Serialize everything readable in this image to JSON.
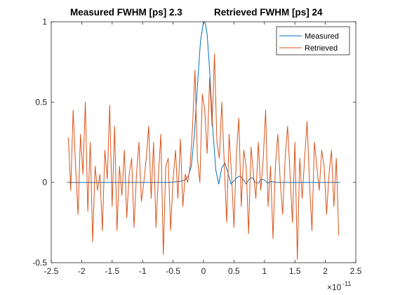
{
  "chart_data": {
    "type": "line",
    "title": "Measured FWHM [ps]  2.3      Retrieved FWHM [ps]  24",
    "title_left": "Measured FWHM [ps]  2.3",
    "title_right": "Retrieved FWHM [ps]  24",
    "xlabel": "",
    "ylabel": "",
    "x_exponent_label": "×10",
    "x_exponent_power": "-11",
    "xlim": [
      -2.5,
      2.5
    ],
    "ylim": [
      -0.5,
      1
    ],
    "xticks": [
      -2.5,
      -2,
      -1.5,
      -1,
      -0.5,
      0,
      0.5,
      1,
      1.5,
      2,
      2.5
    ],
    "xtick_labels": [
      "-2.5",
      "-2",
      "-1.5",
      "-1",
      "-0.5",
      "0",
      "0.5",
      "1",
      "1.5",
      "2",
      "2.5"
    ],
    "yticks": [
      -0.5,
      0,
      0.5,
      1
    ],
    "ytick_labels": [
      "-0.5",
      "0",
      "0.5",
      "1"
    ],
    "grid": false,
    "legend_position": "top-right",
    "series": [
      {
        "name": "Measured",
        "color": "#0072bd",
        "x": [
          -2.24,
          -1.5,
          -1.0,
          -0.6,
          -0.5,
          -0.4,
          -0.3,
          -0.25,
          -0.2,
          -0.15,
          -0.1,
          -0.05,
          0.0,
          0.03,
          0.06,
          0.1,
          0.15,
          0.2,
          0.25,
          0.3,
          0.35,
          0.4,
          0.45,
          0.5,
          0.55,
          0.6,
          0.65,
          0.7,
          0.75,
          0.8,
          0.85,
          0.9,
          0.95,
          1.0,
          1.05,
          1.1,
          1.2,
          1.5,
          2.0,
          2.24
        ],
        "y": [
          0,
          0,
          0,
          0,
          0.002,
          0.005,
          0.015,
          0.04,
          0.1,
          0.3,
          0.6,
          0.88,
          1.0,
          0.99,
          0.92,
          0.7,
          0.35,
          0.08,
          -0.01,
          0.09,
          0.12,
          0.06,
          -0.01,
          0.01,
          0.03,
          0.04,
          0.02,
          -0.01,
          0.02,
          0.03,
          0.0,
          -0.005,
          0.02,
          0.015,
          -0.005,
          0.005,
          0.0,
          0.0,
          0.0,
          0.0
        ]
      },
      {
        "name": "Retrieved",
        "color": "#d95319",
        "x": [
          -2.22,
          -2.18,
          -2.14,
          -2.1,
          -2.06,
          -2.02,
          -1.98,
          -1.94,
          -1.9,
          -1.86,
          -1.82,
          -1.78,
          -1.74,
          -1.7,
          -1.66,
          -1.62,
          -1.58,
          -1.54,
          -1.5,
          -1.46,
          -1.42,
          -1.38,
          -1.34,
          -1.3,
          -1.26,
          -1.22,
          -1.18,
          -1.14,
          -1.1,
          -1.06,
          -1.02,
          -0.98,
          -0.94,
          -0.9,
          -0.86,
          -0.82,
          -0.78,
          -0.74,
          -0.7,
          -0.66,
          -0.62,
          -0.58,
          -0.54,
          -0.5,
          -0.46,
          -0.42,
          -0.38,
          -0.34,
          -0.3,
          -0.26,
          -0.22,
          -0.18,
          -0.14,
          -0.1,
          -0.06,
          -0.02,
          0.02,
          0.06,
          0.1,
          0.14,
          0.18,
          0.22,
          0.26,
          0.3,
          0.34,
          0.38,
          0.42,
          0.46,
          0.5,
          0.54,
          0.58,
          0.62,
          0.66,
          0.7,
          0.74,
          0.78,
          0.82,
          0.86,
          0.9,
          0.94,
          0.98,
          1.02,
          1.06,
          1.1,
          1.14,
          1.18,
          1.22,
          1.26,
          1.3,
          1.34,
          1.38,
          1.42,
          1.46,
          1.5,
          1.54,
          1.58,
          1.62,
          1.66,
          1.7,
          1.74,
          1.78,
          1.82,
          1.86,
          1.9,
          1.94,
          1.98,
          2.02,
          2.06,
          2.1,
          2.14,
          2.18,
          2.22
        ],
        "y": [
          0.28,
          -0.05,
          0.45,
          0.1,
          -0.2,
          0.3,
          0.05,
          0.5,
          -0.18,
          0.25,
          -0.37,
          0.1,
          -0.05,
          0.05,
          -0.3,
          0.2,
          0.02,
          0.48,
          -0.15,
          0.35,
          -0.3,
          0.1,
          -0.08,
          0.2,
          -0.22,
          0.05,
          0.15,
          -0.28,
          0.05,
          0.25,
          -0.12,
          0.0,
          0.15,
          0.35,
          -0.1,
          0.25,
          -0.28,
          0.05,
          0.3,
          -0.45,
          0.1,
          0.15,
          -0.3,
          0.02,
          0.2,
          -0.1,
          0.27,
          -0.15,
          0.05,
          0.0,
          0.1,
          0.35,
          0.7,
          0.15,
          0.0,
          0.55,
          0.45,
          0.18,
          0.65,
          0.35,
          0.8,
          0.25,
          0.15,
          0.5,
          0.12,
          -0.25,
          0.3,
          0.05,
          -0.28,
          0.18,
          0.4,
          -0.15,
          0.2,
          0.1,
          -0.32,
          0.22,
          0.05,
          -0.1,
          0.25,
          -0.05,
          0.15,
          0.45,
          -0.15,
          0.1,
          -0.35,
          0.1,
          0.3,
          0.0,
          -0.2,
          0.15,
          0.35,
          0.05,
          -0.25,
          0.25,
          -0.48,
          0.15,
          -0.1,
          0.15,
          0.38,
          0.0,
          -0.3,
          0.25,
          0.1,
          -0.05,
          0.2,
          0.1,
          -0.2,
          0.05,
          0.2,
          -0.15,
          0.15,
          -0.33
        ]
      }
    ]
  }
}
